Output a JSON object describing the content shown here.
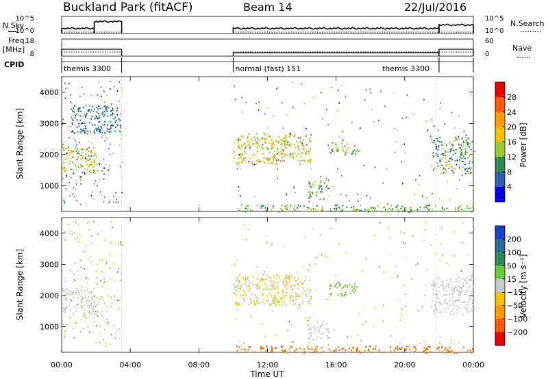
{
  "header": {
    "station": "Buckland Park (fitACF)",
    "beam": "Beam 14",
    "date": "22/Jul/2016"
  },
  "left_labels": {
    "nsky": "N.Sky",
    "freq": "Freq.",
    "freq_unit": "[MHz]",
    "cpid": "CPID",
    "nsky_ticks": [
      "10^5",
      "10^0"
    ],
    "freq_ticks": [
      "18",
      "8"
    ]
  },
  "right_labels": {
    "nsearch": "N.Search",
    "nave": "Nave",
    "nsearch_ticks": [
      "10^5",
      "10^0"
    ],
    "nave_ticks": [
      "60",
      "0"
    ]
  },
  "cpid_segments": [
    {
      "label": "themis 3300",
      "start_h": 0.0,
      "end_h": 3.5
    },
    {
      "label": "normal (fast) 151",
      "start_h": 10.0,
      "end_h": 22.0
    },
    {
      "label": "themis 3300",
      "start_h": 22.0,
      "end_h": 24.0
    }
  ],
  "power_colorbar": {
    "label": "Power [dB]",
    "ticks": [
      "28",
      "24",
      "20",
      "16",
      "12",
      "8",
      "4"
    ],
    "colors": [
      "#ee0000",
      "#ff5a00",
      "#ff9a00",
      "#f2c400",
      "#9acd32",
      "#2e8b57",
      "#2f5faa",
      "#0000ee"
    ]
  },
  "velocity_colorbar": {
    "label": "Velocity [m s⁻¹]",
    "ticks": [
      "200",
      "100",
      "50",
      "15",
      "−15",
      "−50",
      "−100",
      "−200"
    ],
    "colors": [
      "#1a40c8",
      "#2a6a9a",
      "#2e8b57",
      "#66cc33",
      "#c8c8c8",
      "#f2c400",
      "#ff9a00",
      "#ff5a00",
      "#ee0000"
    ]
  },
  "axes": {
    "xlabel": "Time UT",
    "ylabel": "Slant Range [km]",
    "xticks": [
      "00:00",
      "04:00",
      "08:00",
      "12:00",
      "16:00",
      "20:00",
      "00:00"
    ],
    "yticks": [
      "1000",
      "2000",
      "3000",
      "4000"
    ]
  },
  "chart_data": {
    "type": "heatmap",
    "x_range_hours": [
      0,
      24
    ],
    "y_range_km": [
      180,
      4500
    ],
    "data_intervals_hours": [
      [
        0,
        3.5
      ],
      [
        10,
        24
      ]
    ],
    "nsky_level": [
      {
        "x": [
          0,
          1.9
        ],
        "level": 0.3
      },
      {
        "x": [
          1.9,
          3.5
        ],
        "level": 0.7
      },
      {
        "x": [
          10,
          22
        ],
        "level": 0.3
      },
      {
        "x": [
          22,
          24
        ],
        "level": 0.5
      }
    ],
    "freq_mhz": [
      {
        "x": [
          0,
          3.5
        ],
        "value": 12
      },
      {
        "x": [
          10,
          22
        ],
        "value": 10
      },
      {
        "x": [
          22,
          24
        ],
        "value": 12
      }
    ],
    "power_regions": [
      {
        "t": [
          0,
          2.1
        ],
        "r": [
          1400,
          2250
        ],
        "p_db": [
          10,
          22
        ]
      },
      {
        "t": [
          0.5,
          3.4
        ],
        "r": [
          2700,
          3600
        ],
        "p_db": [
          4,
          10
        ]
      },
      {
        "t": [
          10,
          14.5
        ],
        "r": [
          1700,
          2700
        ],
        "p_db": [
          10,
          24
        ]
      },
      {
        "t": [
          14.3,
          15.6
        ],
        "r": [
          600,
          1200
        ],
        "p_db": [
          8,
          16
        ]
      },
      {
        "t": [
          15.5,
          17.2
        ],
        "r": [
          2000,
          2400
        ],
        "p_db": [
          8,
          16
        ]
      },
      {
        "t": [
          21.5,
          24
        ],
        "r": [
          1400,
          2600
        ],
        "p_db": [
          4,
          18
        ]
      },
      {
        "t": [
          10,
          24
        ],
        "r": [
          180,
          400
        ],
        "p_db": [
          8,
          16
        ]
      }
    ],
    "velocity_regions": [
      {
        "t": [
          0,
          2.1
        ],
        "r": [
          1400,
          2250
        ],
        "v_ms": [
          -15,
          15
        ]
      },
      {
        "t": [
          10,
          14.5
        ],
        "r": [
          1700,
          2700
        ],
        "v_ms": [
          -50,
          15
        ]
      },
      {
        "t": [
          14.3,
          15.6
        ],
        "r": [
          600,
          1200
        ],
        "v_ms": [
          -15,
          15
        ]
      },
      {
        "t": [
          15.5,
          17.2
        ],
        "r": [
          2000,
          2400
        ],
        "v_ms": [
          15,
          50
        ]
      },
      {
        "t": [
          21.5,
          24
        ],
        "r": [
          1400,
          2600
        ],
        "v_ms": [
          -15,
          15
        ]
      },
      {
        "t": [
          10,
          24
        ],
        "r": [
          180,
          400
        ],
        "v_ms": [
          -200,
          -50
        ]
      }
    ]
  }
}
